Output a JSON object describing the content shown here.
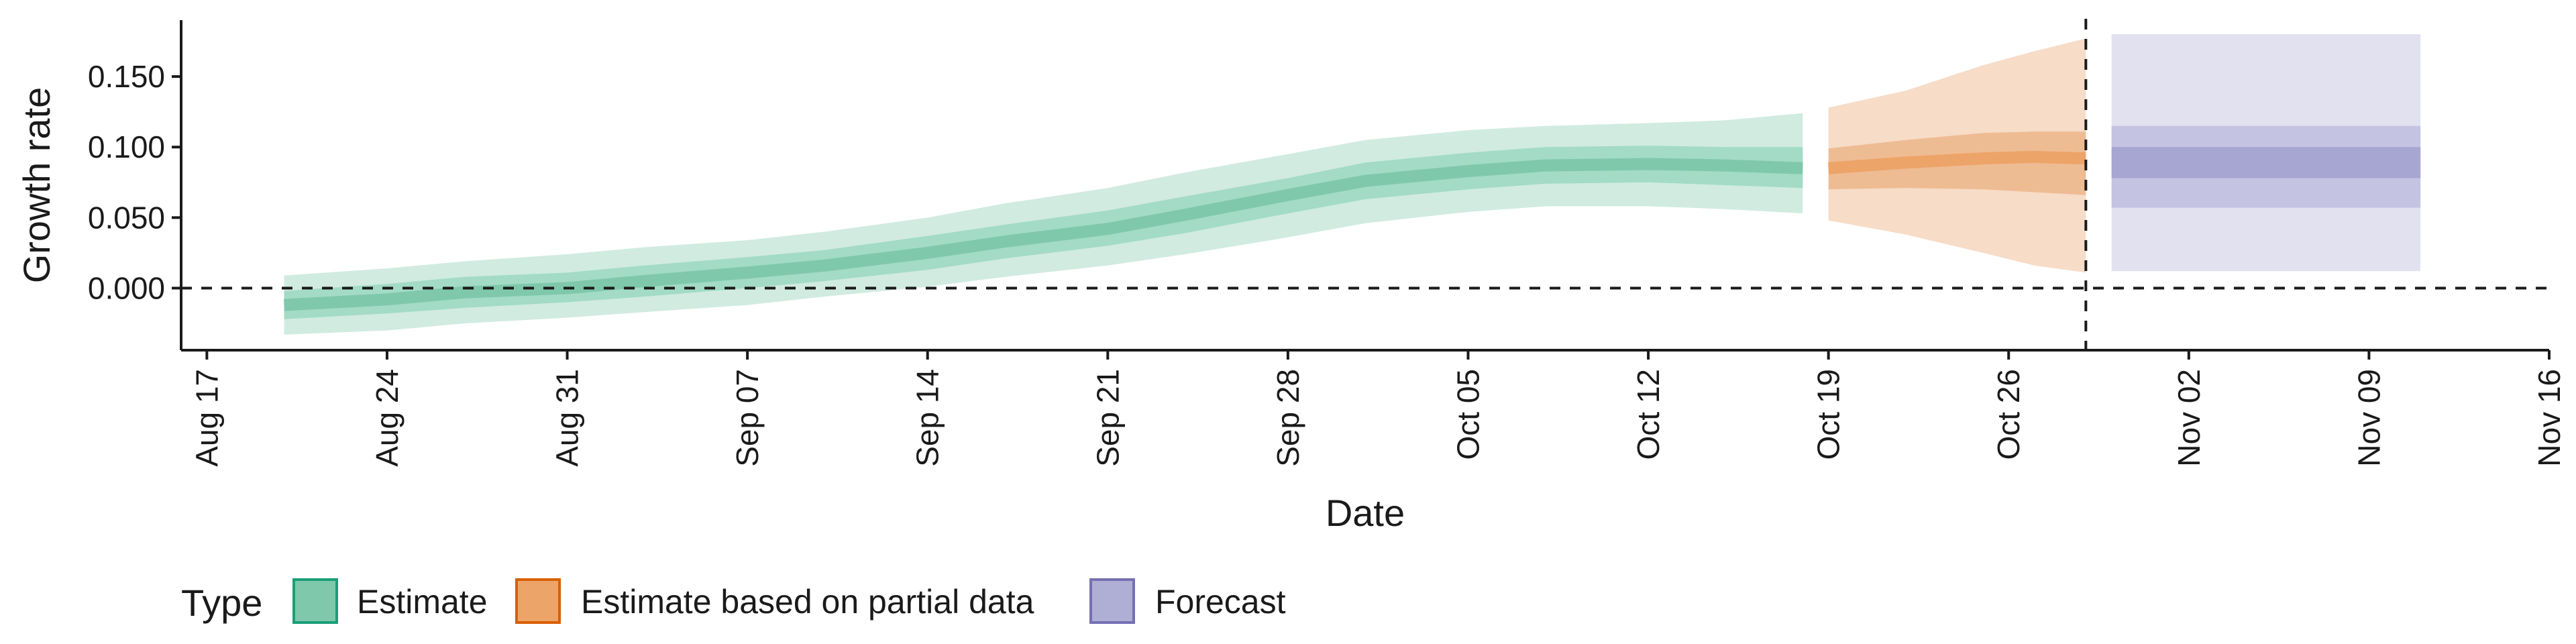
{
  "chart_data": {
    "type": "area",
    "xlabel": "Date",
    "ylabel": "Growth rate",
    "x_ticks": [
      {
        "date": "2020-08-17",
        "label": "Aug 17"
      },
      {
        "date": "2020-08-24",
        "label": "Aug 24"
      },
      {
        "date": "2020-08-31",
        "label": "Aug 31"
      },
      {
        "date": "2020-09-07",
        "label": "Sep 07"
      },
      {
        "date": "2020-09-14",
        "label": "Sep 14"
      },
      {
        "date": "2020-09-21",
        "label": "Sep 21"
      },
      {
        "date": "2020-09-28",
        "label": "Sep 28"
      },
      {
        "date": "2020-10-05",
        "label": "Oct 05"
      },
      {
        "date": "2020-10-12",
        "label": "Oct 12"
      },
      {
        "date": "2020-10-19",
        "label": "Oct 19"
      },
      {
        "date": "2020-10-26",
        "label": "Oct 26"
      },
      {
        "date": "2020-11-02",
        "label": "Nov 02"
      },
      {
        "date": "2020-11-09",
        "label": "Nov 09"
      },
      {
        "date": "2020-11-16",
        "label": "Nov 16"
      }
    ],
    "y_ticks": [
      {
        "value": 0.0,
        "label": "0.000"
      },
      {
        "value": 0.05,
        "label": "0.050"
      },
      {
        "value": 0.1,
        "label": "0.100"
      },
      {
        "value": 0.15,
        "label": "0.150"
      }
    ],
    "xlim": [
      "2020-08-16",
      "2020-11-16"
    ],
    "ylim": [
      -0.044,
      0.19
    ],
    "hline": 0.0,
    "vline": "2020-10-29",
    "grid": false,
    "legend": {
      "title": "Type",
      "position": "bottom-left",
      "entries": [
        {
          "label": "Estimate",
          "fill": "#7fc8ac",
          "stroke": "#1b9e77"
        },
        {
          "label": "Estimate based on partial data",
          "fill": "#eda468",
          "stroke": "#d95f02"
        },
        {
          "label": "Forecast",
          "fill": "#afaed4",
          "stroke": "#7570b3"
        }
      ]
    },
    "series": [
      {
        "type": "Estimate",
        "colors": {
          "outer": "#d1ebe1",
          "inner": "#a3dbc6",
          "median": "#7fc8ac"
        },
        "points": [
          {
            "date": "2020-08-20",
            "median": -0.012,
            "inner": [
              -0.022,
              -0.002
            ],
            "outer": [
              -0.033,
              0.009
            ]
          },
          {
            "date": "2020-08-24",
            "median": -0.008,
            "inner": [
              -0.018,
              0.003
            ],
            "outer": [
              -0.03,
              0.014
            ]
          },
          {
            "date": "2020-08-27",
            "median": -0.003,
            "inner": [
              -0.014,
              0.008
            ],
            "outer": [
              -0.025,
              0.019
            ]
          },
          {
            "date": "2020-08-31",
            "median": 0.0,
            "inner": [
              -0.01,
              0.011
            ],
            "outer": [
              -0.021,
              0.024
            ]
          },
          {
            "date": "2020-09-03",
            "median": 0.005,
            "inner": [
              -0.006,
              0.016
            ],
            "outer": [
              -0.017,
              0.029
            ]
          },
          {
            "date": "2020-09-07",
            "median": 0.011,
            "inner": [
              0.0,
              0.022
            ],
            "outer": [
              -0.012,
              0.034
            ]
          },
          {
            "date": "2020-09-10",
            "median": 0.016,
            "inner": [
              0.005,
              0.027
            ],
            "outer": [
              -0.006,
              0.04
            ]
          },
          {
            "date": "2020-09-14",
            "median": 0.025,
            "inner": [
              0.013,
              0.037
            ],
            "outer": [
              0.001,
              0.05
            ]
          },
          {
            "date": "2020-09-17",
            "median": 0.033,
            "inner": [
              0.021,
              0.045
            ],
            "outer": [
              0.008,
              0.06
            ]
          },
          {
            "date": "2020-09-21",
            "median": 0.042,
            "inner": [
              0.03,
              0.055
            ],
            "outer": [
              0.016,
              0.071
            ]
          },
          {
            "date": "2020-09-24",
            "median": 0.052,
            "inner": [
              0.039,
              0.065
            ],
            "outer": [
              0.024,
              0.082
            ]
          },
          {
            "date": "2020-09-28",
            "median": 0.066,
            "inner": [
              0.053,
              0.078
            ],
            "outer": [
              0.036,
              0.095
            ]
          },
          {
            "date": "2020-10-01",
            "median": 0.076,
            "inner": [
              0.063,
              0.089
            ],
            "outer": [
              0.046,
              0.105
            ]
          },
          {
            "date": "2020-10-05",
            "median": 0.083,
            "inner": [
              0.07,
              0.096
            ],
            "outer": [
              0.054,
              0.112
            ]
          },
          {
            "date": "2020-10-08",
            "median": 0.087,
            "inner": [
              0.074,
              0.1
            ],
            "outer": [
              0.058,
              0.115
            ]
          },
          {
            "date": "2020-10-12",
            "median": 0.088,
            "inner": [
              0.075,
              0.101
            ],
            "outer": [
              0.058,
              0.117
            ]
          },
          {
            "date": "2020-10-15",
            "median": 0.087,
            "inner": [
              0.073,
              0.1
            ],
            "outer": [
              0.056,
              0.119
            ]
          },
          {
            "date": "2020-10-18",
            "median": 0.085,
            "inner": [
              0.071,
              0.1
            ],
            "outer": [
              0.053,
              0.124
            ]
          }
        ]
      },
      {
        "type": "Estimate based on partial data",
        "colors": {
          "outer": "#f7dcc7",
          "inner": "#eebc93",
          "median": "#eda468"
        },
        "points": [
          {
            "date": "2020-10-19",
            "median": 0.085,
            "inner": [
              0.07,
              0.099
            ],
            "outer": [
              0.048,
              0.128
            ]
          },
          {
            "date": "2020-10-22",
            "median": 0.089,
            "inner": [
              0.071,
              0.105
            ],
            "outer": [
              0.038,
              0.14
            ]
          },
          {
            "date": "2020-10-25",
            "median": 0.092,
            "inner": [
              0.07,
              0.11
            ],
            "outer": [
              0.025,
              0.158
            ]
          },
          {
            "date": "2020-10-27",
            "median": 0.093,
            "inner": [
              0.068,
              0.111
            ],
            "outer": [
              0.016,
              0.168
            ]
          },
          {
            "date": "2020-10-29",
            "median": 0.092,
            "inner": [
              0.066,
              0.111
            ],
            "outer": [
              0.011,
              0.177
            ]
          }
        ]
      },
      {
        "type": "Forecast",
        "colors": {
          "outer": "#e2e1ef",
          "inner": "#c5c3e2",
          "core": "#a7a5d2"
        },
        "start": "2020-10-30",
        "end": "2020-11-11",
        "median_band": [
          0.078,
          0.1
        ],
        "inner": [
          0.057,
          0.115
        ],
        "outer": [
          0.012,
          0.18
        ]
      }
    ]
  }
}
